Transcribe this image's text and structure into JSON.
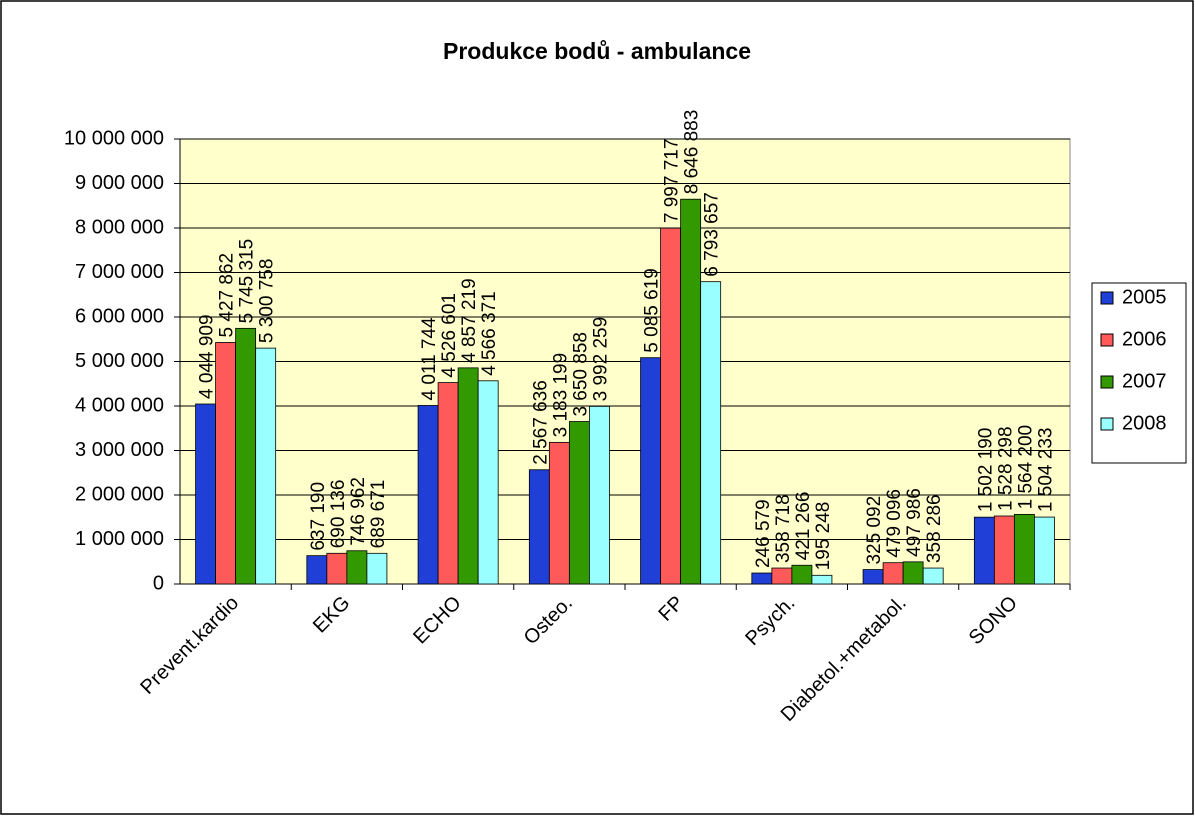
{
  "chart_data": {
    "type": "bar",
    "title": "Produkce bodů -  ambulance",
    "categories": [
      "Prevent.kardio",
      "EKG",
      "ECHO",
      "Osteo.",
      "FP",
      "Psych.",
      "Diabetol.+metabol.",
      "SONO"
    ],
    "series": [
      {
        "name": "2005",
        "color": "#1f3fd6",
        "values": [
          4044909,
          637190,
          4011744,
          2567636,
          5085619,
          246579,
          325092,
          1502190
        ],
        "value_labels": [
          "4 044 909",
          "637 190",
          "4 011 744",
          "2 567 636",
          "5 085 619",
          "246 579",
          "325 092",
          "1 502 190"
        ]
      },
      {
        "name": "2006",
        "color": "#ff5a5a",
        "values": [
          5427862,
          690136,
          4526601,
          3183199,
          7997717,
          358718,
          479096,
          1528298
        ],
        "value_labels": [
          "5 427 862",
          "690 136",
          "4 526 601",
          "3 183 199",
          "7 997 717",
          "358 718",
          "479 096",
          "1 528 298"
        ]
      },
      {
        "name": "2007",
        "color": "#339900",
        "values": [
          5745315,
          746962,
          4857219,
          3650858,
          8646883,
          421266,
          497986,
          1564200
        ],
        "value_labels": [
          "5 745 315",
          "746 962",
          "4 857 219",
          "3 650 858",
          "8 646 883",
          "421 266",
          "497 986",
          "1 564 200"
        ]
      },
      {
        "name": "2008",
        "color": "#99ffff",
        "values": [
          5300758,
          689671,
          4566371,
          3992259,
          6793657,
          195248,
          358286,
          1504233
        ],
        "value_labels": [
          "5 300 758",
          "689 671",
          "4 566 371",
          "3 992 259",
          "6 793 657",
          "195 248",
          "358 286",
          "1 504 233"
        ]
      }
    ],
    "ylim": [
      0,
      10000000
    ],
    "yticks": [
      0,
      {
        "value": 1000000,
        "label": "1 000 000"
      },
      {
        "value": 2000000,
        "label": "2 000 000"
      },
      {
        "value": 3000000,
        "label": "3 000 000"
      },
      {
        "value": 4000000,
        "label": "4 000 000"
      },
      {
        "value": 5000000,
        "label": "5 000 000"
      },
      {
        "value": 6000000,
        "label": "6 000 000"
      },
      {
        "value": 7000000,
        "label": "7 000 000"
      },
      {
        "value": 8000000,
        "label": "8 000 000"
      },
      {
        "value": 9000000,
        "label": "9 000 000"
      },
      {
        "value": 10000000,
        "label": "10 000 000"
      }
    ],
    "grid": true,
    "legend": "right",
    "plot_background": "#ffffcc"
  }
}
